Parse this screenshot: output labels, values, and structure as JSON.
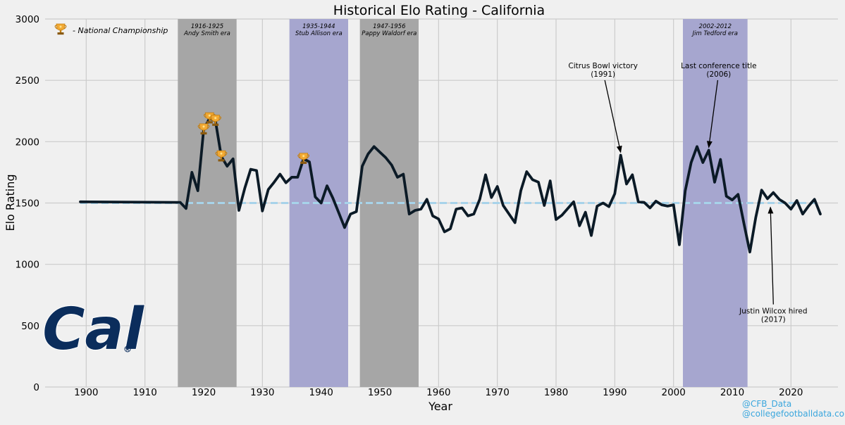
{
  "chart_data": {
    "type": "line",
    "title": "Historical Elo Rating - California",
    "xlabel": "Year",
    "ylabel": "Elo Rating",
    "xlim": [
      1893,
      2028
    ],
    "ylim": [
      0,
      3000
    ],
    "xticks": [
      1900,
      1910,
      1920,
      1930,
      1940,
      1950,
      1960,
      1970,
      1980,
      1990,
      2000,
      2010,
      2020
    ],
    "yticks": [
      0,
      500,
      1000,
      1500,
      2000,
      2500,
      3000
    ],
    "grid": true,
    "baseline": 1500,
    "series": [
      {
        "name": "Elo Rating",
        "color": "#0b1a26",
        "x": [
          1899,
          1916,
          1917,
          1918,
          1919,
          1920,
          1921,
          1922,
          1923,
          1924,
          1925,
          1926,
          1927,
          1928,
          1929,
          1930,
          1931,
          1932,
          1933,
          1934,
          1935,
          1936,
          1937,
          1938,
          1939,
          1940,
          1941,
          1942,
          1943,
          1944,
          1945,
          1946,
          1947,
          1948,
          1949,
          1950,
          1951,
          1952,
          1953,
          1954,
          1955,
          1956,
          1957,
          1958,
          1959,
          1960,
          1961,
          1962,
          1963,
          1964,
          1965,
          1966,
          1967,
          1968,
          1969,
          1970,
          1971,
          1972,
          1973,
          1974,
          1975,
          1976,
          1977,
          1978,
          1979,
          1980,
          1981,
          1982,
          1983,
          1984,
          1985,
          1986,
          1987,
          1988,
          1989,
          1990,
          1991,
          1992,
          1993,
          1994,
          1995,
          1996,
          1997,
          1998,
          1999,
          2000,
          2001,
          2002,
          2003,
          2004,
          2005,
          2006,
          2007,
          2008,
          2009,
          2010,
          2011,
          2012,
          2013,
          2014,
          2015,
          2016,
          2017,
          2018,
          2019,
          2020,
          2021,
          2022,
          2023,
          2024,
          2025
        ],
        "y": [
          1510,
          1505,
          1455,
          1750,
          1600,
          2100,
          2190,
          2170,
          1880,
          1800,
          1860,
          1440,
          1620,
          1775,
          1765,
          1435,
          1610,
          1670,
          1735,
          1665,
          1710,
          1710,
          1860,
          1835,
          1550,
          1500,
          1640,
          1540,
          1420,
          1300,
          1410,
          1430,
          1800,
          1900,
          1960,
          1915,
          1870,
          1810,
          1710,
          1735,
          1410,
          1440,
          1450,
          1530,
          1395,
          1370,
          1265,
          1290,
          1450,
          1460,
          1395,
          1410,
          1530,
          1730,
          1545,
          1635,
          1480,
          1410,
          1340,
          1600,
          1755,
          1690,
          1670,
          1480,
          1680,
          1365,
          1400,
          1455,
          1510,
          1315,
          1425,
          1235,
          1475,
          1500,
          1470,
          1575,
          1890,
          1655,
          1730,
          1510,
          1505,
          1460,
          1515,
          1485,
          1475,
          1485,
          1160,
          1600,
          1830,
          1960,
          1830,
          1930,
          1670,
          1855,
          1555,
          1525,
          1570,
          1330,
          1100,
          1380,
          1605,
          1535,
          1585,
          1530,
          1500,
          1450,
          1520,
          1410,
          1475,
          1530,
          1410
        ]
      }
    ],
    "eras": [
      {
        "start": 1915.6,
        "end": 1925.6,
        "years": "1916-1925",
        "name": "Andy Smith era",
        "color": "#a6a6a6"
      },
      {
        "start": 1934.6,
        "end": 1944.6,
        "years": "1935-1944",
        "name": "Stub Allison era",
        "color": "#a6a6cf"
      },
      {
        "start": 1946.6,
        "end": 1956.6,
        "years": "1947-1956",
        "name": "Pappy Waldorf era",
        "color": "#a6a6a6"
      },
      {
        "start": 2001.6,
        "end": 2012.6,
        "years": "2002-2012",
        "name": "Jim Tedford era",
        "color": "#a6a6cf"
      }
    ],
    "championships": [
      {
        "x": 1920,
        "y": 2100
      },
      {
        "x": 1921,
        "y": 2190
      },
      {
        "x": 1922,
        "y": 2170
      },
      {
        "x": 1923,
        "y": 1880
      },
      {
        "x": 1937,
        "y": 1860
      }
    ],
    "annotations": [
      {
        "line1": "Citrus Bowl victory",
        "line2": "(1991)",
        "target_x": 1991,
        "target_y": 1890,
        "text_x": 1988,
        "text_y": 2530
      },
      {
        "line1": "Last conference title",
        "line2": "(2006)",
        "target_x": 2006,
        "target_y": 1930,
        "text_x": 2007.7,
        "text_y": 2530
      },
      {
        "line1": "Justin Wilcox hired",
        "line2": "(2017)",
        "target_x": 2016.5,
        "target_y": 1500,
        "text_x": 2017,
        "text_y": 530
      }
    ],
    "legend": {
      "label": "- National Championship",
      "placement": "top-left"
    }
  },
  "logo_text": "Cal",
  "credits": [
    "@CFB_Data",
    "@collegefootballdata.com"
  ]
}
